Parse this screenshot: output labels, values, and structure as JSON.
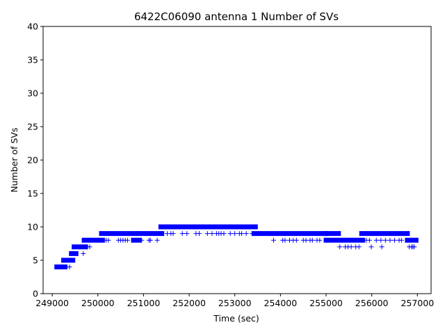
{
  "chart_data": {
    "type": "scatter",
    "title": "6422C06090 antenna 1 Number of SVs",
    "xlabel": "Time (sec)",
    "ylabel": "Number of SVs",
    "xlim": [
      248800,
      257300
    ],
    "ylim": [
      0,
      40
    ],
    "x_ticks": [
      249000,
      250000,
      251000,
      252000,
      253000,
      254000,
      255000,
      256000,
      257000
    ],
    "y_ticks": [
      0,
      5,
      10,
      15,
      20,
      25,
      30,
      35,
      40
    ],
    "x_tick_labels": [
      "249000",
      "250000",
      "251000",
      "252000",
      "253000",
      "254000",
      "255000",
      "256000",
      "257000"
    ],
    "y_tick_labels": [
      "0",
      "5",
      "10",
      "15",
      "20",
      "25",
      "30",
      "35",
      "40"
    ],
    "marker": "+",
    "color": "#0000ff",
    "grid": false,
    "segments": [
      {
        "x_start": 249100,
        "x_end": 249280,
        "y": 4
      },
      {
        "x_start": 249250,
        "x_end": 249450,
        "y": 5
      },
      {
        "x_start": 249420,
        "x_end": 249520,
        "y": 6
      },
      {
        "x_start": 249480,
        "x_end": 249730,
        "y": 7
      },
      {
        "x_start": 249700,
        "x_end": 250100,
        "y": 8
      },
      {
        "x_start": 250080,
        "x_end": 250830,
        "y": 9
      },
      {
        "x_start": 250780,
        "x_end": 250900,
        "y": 8
      },
      {
        "x_start": 250900,
        "x_end": 251400,
        "y": 9
      },
      {
        "x_start": 251380,
        "x_end": 253450,
        "y": 10
      },
      {
        "x_start": 253420,
        "x_end": 255000,
        "y": 9
      },
      {
        "x_start": 255000,
        "x_end": 255270,
        "y": 9
      },
      {
        "x_start": 255000,
        "x_end": 255800,
        "y": 8
      },
      {
        "x_start": 255780,
        "x_end": 256780,
        "y": 9
      },
      {
        "x_start": 256780,
        "x_end": 256970,
        "y": 8
      }
    ],
    "outliers": [
      {
        "x": 249200,
        "y": 4
      },
      {
        "x": 249380,
        "y": 4
      },
      {
        "x": 249320,
        "y": 4
      },
      {
        "x": 249680,
        "y": 6
      },
      {
        "x": 249820,
        "y": 7
      },
      {
        "x": 249760,
        "y": 7
      },
      {
        "x": 250000,
        "y": 8
      },
      {
        "x": 250180,
        "y": 8
      },
      {
        "x": 250230,
        "y": 8
      },
      {
        "x": 250450,
        "y": 8
      },
      {
        "x": 250500,
        "y": 8
      },
      {
        "x": 250550,
        "y": 8
      },
      {
        "x": 250600,
        "y": 8
      },
      {
        "x": 250650,
        "y": 8
      },
      {
        "x": 250960,
        "y": 8
      },
      {
        "x": 251120,
        "y": 8
      },
      {
        "x": 251150,
        "y": 8
      },
      {
        "x": 251300,
        "y": 8
      },
      {
        "x": 251520,
        "y": 9
      },
      {
        "x": 251600,
        "y": 9
      },
      {
        "x": 251650,
        "y": 9
      },
      {
        "x": 251850,
        "y": 9
      },
      {
        "x": 251950,
        "y": 9
      },
      {
        "x": 252150,
        "y": 9
      },
      {
        "x": 252220,
        "y": 9
      },
      {
        "x": 252400,
        "y": 9
      },
      {
        "x": 252500,
        "y": 9
      },
      {
        "x": 252600,
        "y": 9
      },
      {
        "x": 252650,
        "y": 9
      },
      {
        "x": 252700,
        "y": 9
      },
      {
        "x": 252760,
        "y": 9
      },
      {
        "x": 252900,
        "y": 9
      },
      {
        "x": 253000,
        "y": 9
      },
      {
        "x": 253100,
        "y": 9
      },
      {
        "x": 253150,
        "y": 9
      },
      {
        "x": 253250,
        "y": 9
      },
      {
        "x": 253380,
        "y": 9
      },
      {
        "x": 253850,
        "y": 8
      },
      {
        "x": 254050,
        "y": 8
      },
      {
        "x": 254100,
        "y": 8
      },
      {
        "x": 254200,
        "y": 8
      },
      {
        "x": 254280,
        "y": 8
      },
      {
        "x": 254350,
        "y": 8
      },
      {
        "x": 254500,
        "y": 8
      },
      {
        "x": 254560,
        "y": 8
      },
      {
        "x": 254650,
        "y": 8
      },
      {
        "x": 254700,
        "y": 8
      },
      {
        "x": 254800,
        "y": 8
      },
      {
        "x": 254860,
        "y": 8
      },
      {
        "x": 255300,
        "y": 7
      },
      {
        "x": 255420,
        "y": 7
      },
      {
        "x": 255480,
        "y": 7
      },
      {
        "x": 255550,
        "y": 7
      },
      {
        "x": 255650,
        "y": 7
      },
      {
        "x": 255720,
        "y": 7
      },
      {
        "x": 255880,
        "y": 8
      },
      {
        "x": 255950,
        "y": 8
      },
      {
        "x": 255990,
        "y": 7
      },
      {
        "x": 256100,
        "y": 8
      },
      {
        "x": 256200,
        "y": 8
      },
      {
        "x": 256220,
        "y": 7
      },
      {
        "x": 256300,
        "y": 8
      },
      {
        "x": 256400,
        "y": 8
      },
      {
        "x": 256500,
        "y": 8
      },
      {
        "x": 256600,
        "y": 8
      },
      {
        "x": 256650,
        "y": 8
      },
      {
        "x": 256820,
        "y": 7
      },
      {
        "x": 256870,
        "y": 7
      },
      {
        "x": 256900,
        "y": 7
      },
      {
        "x": 256930,
        "y": 7
      }
    ]
  }
}
